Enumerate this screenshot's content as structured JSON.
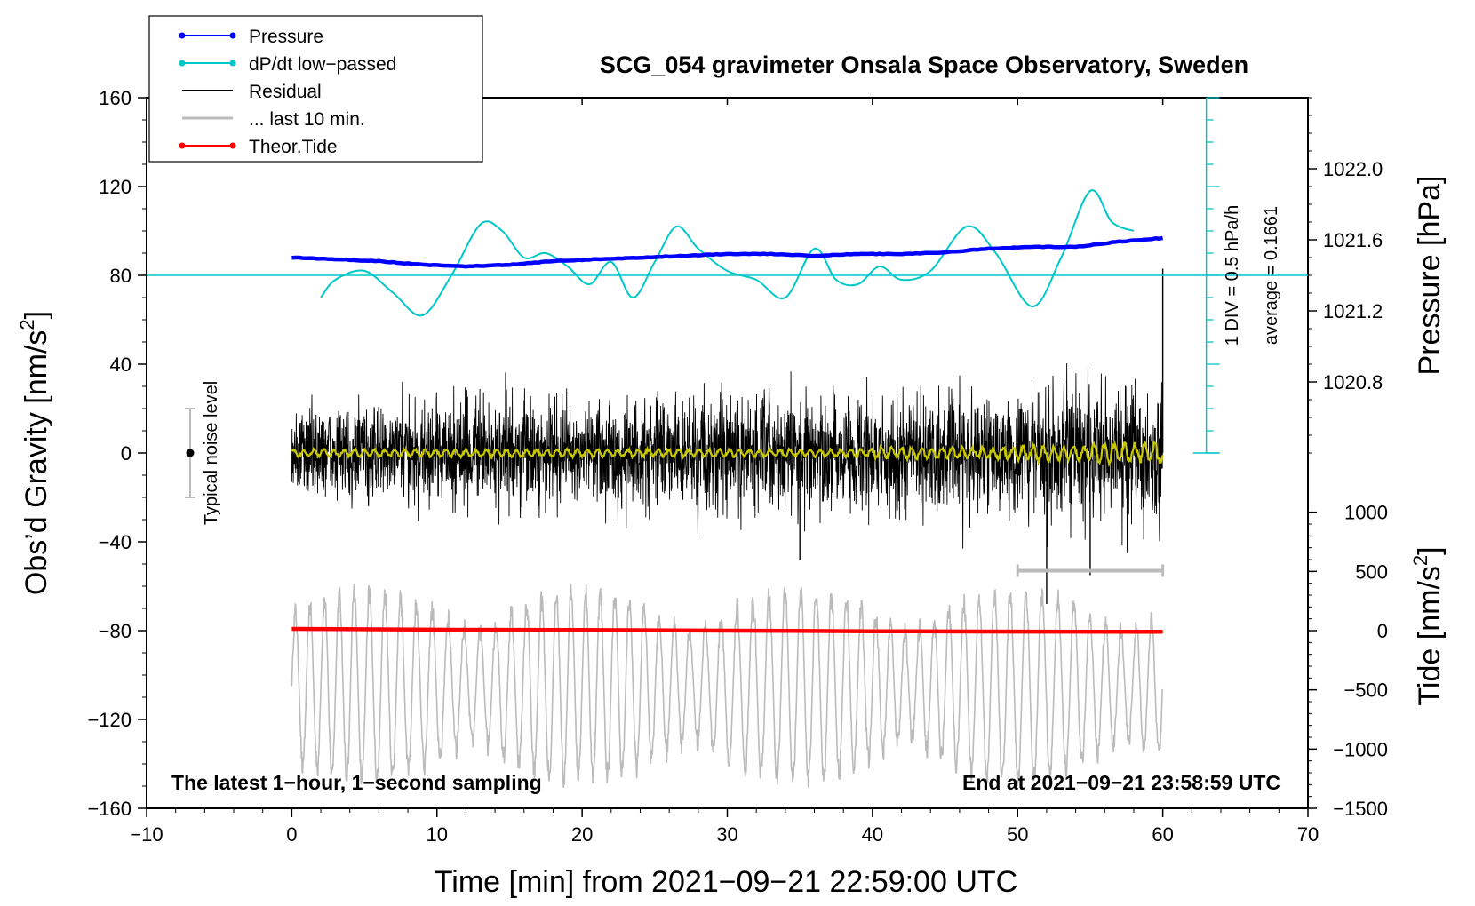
{
  "chart_data": {
    "type": "line",
    "title": "SCG_054 gravimeter Onsala Space Observatory, Sweden",
    "xlabel": "Time [min] from 2021−09−21 22:59:00 UTC",
    "ylabel_left": "Obs’d Gravity [nm/s²]",
    "ylabel_left_main": "Obs’d Gravity [nm/s",
    "ylabel_pressure": "Pressure [hPa]",
    "ylabel_tide_main": "Tide [nm/s",
    "superscript": "2",
    "xlim": [
      -10,
      70
    ],
    "ylim_left": [
      -160,
      160
    ],
    "ylim_pressure": [
      1020.4,
      1022.4
    ],
    "ylim_tide": [
      -1500,
      1500
    ],
    "x_ticks": [
      "−10",
      "0",
      "10",
      "20",
      "30",
      "40",
      "50",
      "60",
      "70"
    ],
    "y_ticks_left": [
      "−160",
      "−120",
      "−80",
      "−40",
      "0",
      "40",
      "80",
      "120",
      "160"
    ],
    "pressure_ticks": [
      "1020.8",
      "1021.2",
      "1021.6",
      "1022.0"
    ],
    "tide_ticks": [
      "−1500",
      "−1000",
      "−500",
      "0",
      "500",
      "1000"
    ],
    "legend": [
      {
        "label": "Pressure",
        "color": "#0000ff",
        "marker": true
      },
      {
        "label": "dP/dt low−passed",
        "color": "#00c8c8",
        "marker": true
      },
      {
        "label": "Residual",
        "color": "#000000",
        "marker": false
      },
      {
        "label": "... last 10 min.",
        "color": "#bbbbbb",
        "marker": false
      },
      {
        "label": "Theor.Tide",
        "color": "#ff0000",
        "marker": true
      }
    ],
    "annotations": {
      "bottom_left": "The latest 1−hour, 1−second sampling",
      "bottom_right": "End at 2021−09−21 23:58:59 UTC",
      "noise": "Typical noise level",
      "div": "1 DIV = 0.5 hPa/h",
      "average": "average = 0.1661"
    },
    "noise_bar": {
      "x": -7,
      "center": 0,
      "half_range": 20
    },
    "dpdt_axis": {
      "x": 63,
      "baseline": 80,
      "top": 160,
      "bottom": 0
    },
    "last10_bar": {
      "x_start": 50,
      "x_end": 60,
      "y": -53
    },
    "series": [
      {
        "name": "Pressure",
        "axis": "pressure",
        "color": "#0000ff",
        "x": [
          0,
          3,
          6,
          9,
          12,
          15,
          18,
          21,
          24,
          27,
          30,
          33,
          36,
          39,
          42,
          45,
          48,
          51,
          54,
          57,
          60
        ],
        "values": [
          1021.5,
          1021.49,
          1021.48,
          1021.46,
          1021.45,
          1021.46,
          1021.48,
          1021.49,
          1021.5,
          1021.51,
          1021.52,
          1021.52,
          1021.51,
          1021.52,
          1021.52,
          1021.53,
          1021.55,
          1021.56,
          1021.56,
          1021.59,
          1021.61
        ]
      },
      {
        "name": "dP/dt low−passed",
        "axis": "left",
        "color": "#00c8c8",
        "x": [
          2,
          3,
          5,
          7,
          9,
          11,
          13,
          14.5,
          16,
          17.5,
          19,
          20.5,
          22,
          23.5,
          25,
          26.5,
          28,
          30,
          32,
          34,
          36,
          37.5,
          39,
          40.5,
          42,
          44,
          46.5,
          48.5,
          51,
          53,
          55,
          56.5,
          58
        ],
        "values": [
          70,
          78,
          82,
          72,
          62,
          80,
          103,
          100,
          88,
          90,
          84,
          76,
          86,
          70,
          86,
          102,
          92,
          82,
          78,
          70,
          92,
          78,
          76,
          84,
          78,
          82,
          102,
          90,
          66,
          88,
          118,
          104,
          100
        ]
      },
      {
        "name": "Residual",
        "axis": "left",
        "color": "#000000",
        "x_range": [
          0,
          60
        ],
        "amplitude_envelope": [
          {
            "x": 0,
            "amp": 30
          },
          {
            "x": 10,
            "amp": 38
          },
          {
            "x": 20,
            "amp": 36
          },
          {
            "x": 30,
            "amp": 40
          },
          {
            "x": 40,
            "amp": 38
          },
          {
            "x": 50,
            "amp": 42
          },
          {
            "x": 55,
            "amp": 45
          },
          {
            "x": 60,
            "amp": 55
          }
        ],
        "spikes": [
          {
            "x": 35,
            "y": -48
          },
          {
            "x": 52,
            "y": -68
          },
          {
            "x": 55,
            "y": -55
          },
          {
            "x": 60,
            "y": 83
          }
        ]
      },
      {
        "name": "Residual low−passed",
        "axis": "left",
        "color": "#c8c800",
        "x_range": [
          0,
          60
        ],
        "values_level": 0,
        "noise_amp": [
          2,
          2,
          2,
          2,
          3,
          4,
          10
        ]
      },
      {
        "name": "Theor.Tide",
        "axis": "tide",
        "color": "#ff0000",
        "x": [
          0,
          10,
          20,
          30,
          40,
          50,
          60
        ],
        "values": [
          15,
          8,
          5,
          0,
          -5,
          -8,
          -10
        ]
      },
      {
        "name": "... last 10 min.",
        "axis": "left",
        "color": "#bbbbbb",
        "x_range": [
          0,
          60
        ],
        "center": -105,
        "amplitude": 42,
        "period_min": 1.05
      }
    ]
  }
}
